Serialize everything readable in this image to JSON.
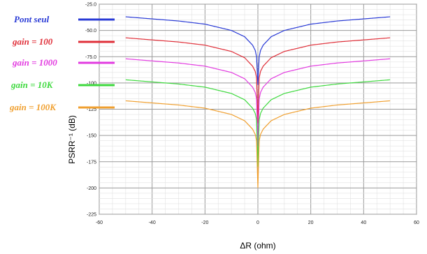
{
  "chart_data": {
    "type": "line",
    "xlabel": "ΔR (ohm)",
    "ylabel": "PSRR⁻¹ (dB)",
    "xlim": [
      -60,
      60
    ],
    "ylim": [
      -225,
      -25
    ],
    "x_ticks": [
      "-60",
      "-40",
      "-20",
      "0",
      "20",
      "40",
      "60"
    ],
    "y_ticks": [
      "-25.0",
      "-50.0",
      "-75.0",
      "-100",
      "-125",
      "-150",
      "-175",
      "-200",
      "-225"
    ],
    "grid": true,
    "legend_position": "top-left",
    "x": [
      -50,
      -40,
      -30,
      -20,
      -10,
      -5,
      -2,
      -1,
      -0.5,
      0,
      0.5,
      1,
      2,
      5,
      10,
      20,
      30,
      40,
      50
    ],
    "series": [
      {
        "name": "Pont seul",
        "color": "#2a3bd6",
        "values": [
          -37,
          -39,
          -41,
          -44,
          -50,
          -56,
          -64,
          -69,
          -75,
          -102,
          -75,
          -69,
          -64,
          -56,
          -50,
          -44,
          -41,
          -39,
          -37
        ]
      },
      {
        "name": "gain = 100",
        "color": "#e0303a",
        "values": [
          -57,
          -59,
          -61,
          -64,
          -70,
          -76,
          -84,
          -89,
          -95,
          -138,
          -95,
          -89,
          -84,
          -76,
          -70,
          -64,
          -61,
          -59,
          -57
        ]
      },
      {
        "name": "gain = 1000",
        "color": "#e23be0",
        "values": [
          -77,
          -79,
          -81,
          -84,
          -90,
          -96,
          -104,
          -109,
          -115,
          -160,
          -115,
          -109,
          -104,
          -96,
          -90,
          -84,
          -81,
          -79,
          -77
        ]
      },
      {
        "name": "gain = 10K",
        "color": "#3ed93e",
        "values": [
          -97,
          -99,
          -101,
          -104,
          -110,
          -116,
          -124,
          -129,
          -135,
          -180,
          -135,
          -129,
          -124,
          -116,
          -110,
          -104,
          -101,
          -99,
          -97
        ]
      },
      {
        "name": "gain = 100K",
        "color": "#f0a030",
        "values": [
          -117,
          -119,
          -121,
          -124,
          -130,
          -136,
          -144,
          -149,
          -155,
          -200,
          -155,
          -149,
          -144,
          -136,
          -130,
          -124,
          -121,
          -119,
          -117
        ]
      }
    ]
  }
}
